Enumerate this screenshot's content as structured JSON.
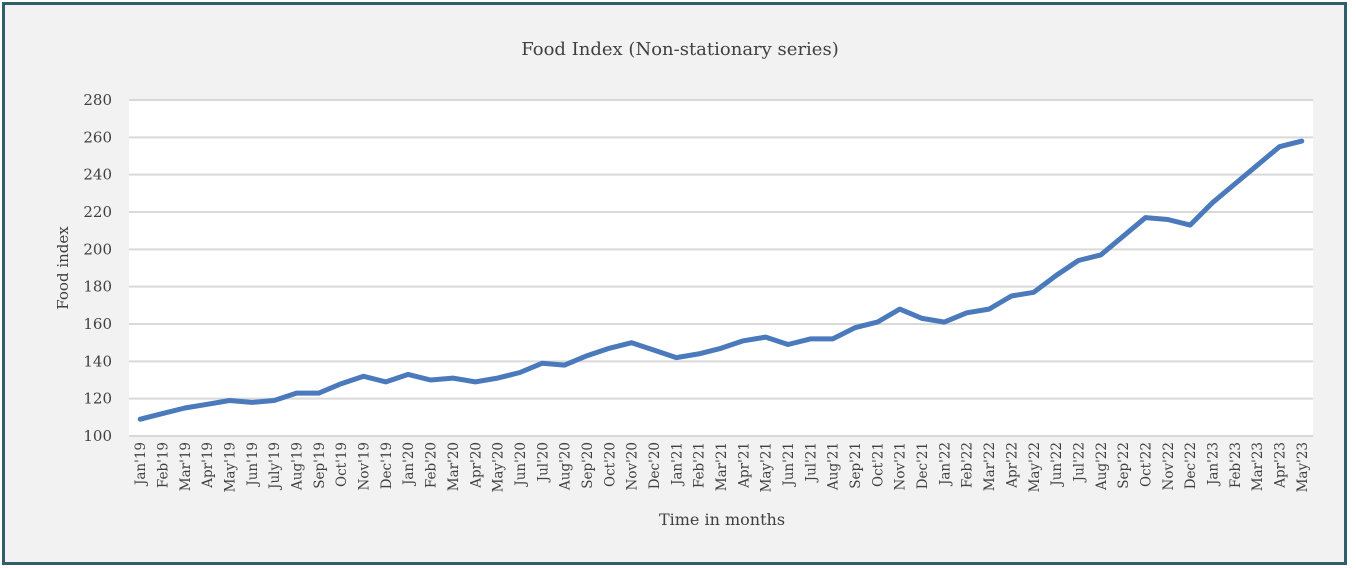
{
  "chart_data": {
    "type": "line",
    "title": "Food Index (Non-stationary series)",
    "xlabel": "Time in months",
    "ylabel": "Food index",
    "ylim": [
      100,
      280
    ],
    "yticks": [
      100,
      120,
      140,
      160,
      180,
      200,
      220,
      240,
      260,
      280
    ],
    "grid": true,
    "legend": "none",
    "line_color": "#4a7abc",
    "categories": [
      "Jan'19",
      "Feb'19",
      "Mar'19",
      "Apr'19",
      "May'19",
      "Jun'19",
      "July'19",
      "Aug'19",
      "Sep'19",
      "Oct'19",
      "Nov'19",
      "Dec'19",
      "Jan'20",
      "Feb'20",
      "Mar'20",
      "Apr'20",
      "May'20",
      "Jun'20",
      "Jul'20",
      "Aug'20",
      "Sep'20",
      "Oct'20",
      "Nov'20",
      "Dec'20",
      "Jan'21",
      "Feb'21",
      "Mar'21",
      "Apr'21",
      "May'21",
      "Jun'21",
      "Jul'21",
      "Aug'21",
      "Sep'21",
      "Oct'21",
      "Nov'21",
      "Dec'21",
      "Jan'22",
      "Feb'22",
      "Mar'22",
      "Apr'22",
      "May'22",
      "Jun'22",
      "Jul'22",
      "Aug'22",
      "Sep'22",
      "Oct'22",
      "Nov'22",
      "Dec'22",
      "Jan'23",
      "Feb'23",
      "Mar'23",
      "Apr'23",
      "May'23"
    ],
    "series": [
      {
        "values": [
          109,
          112,
          115,
          117,
          119,
          118,
          119,
          123,
          123,
          128,
          132,
          129,
          133,
          130,
          131,
          129,
          131,
          134,
          139,
          138,
          143,
          147,
          150,
          146,
          142,
          144,
          147,
          151,
          153,
          149,
          152,
          152,
          158,
          161,
          168,
          163,
          161,
          166,
          168,
          175,
          177,
          186,
          194,
          197,
          207,
          217,
          216,
          213,
          225,
          235,
          245,
          255,
          258
        ]
      }
    ]
  }
}
